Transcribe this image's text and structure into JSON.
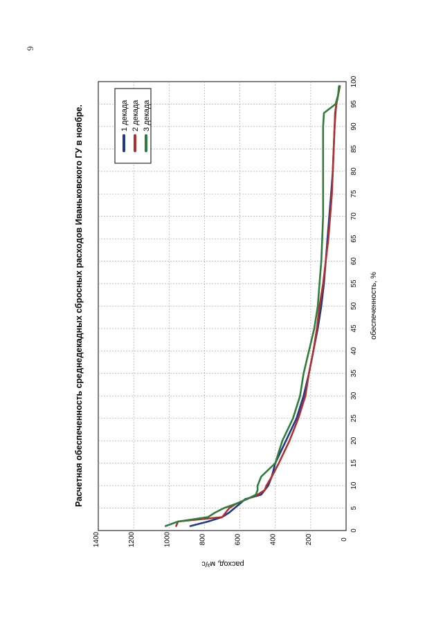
{
  "page": {
    "number": "6"
  },
  "colors": {
    "series1": "#1f3a8a",
    "series2": "#b03030",
    "series3": "#2e7d3a",
    "grid": "#9a9a9a"
  },
  "chart_data": {
    "type": "line",
    "orientation": "rotated-90-clockwise",
    "title": "Расчетная обеспеченность среднедекадных сбросных расходов Иваньковского ГУ в ноябре.",
    "xlabel": "обеспеченность, %",
    "ylabel": "расход, м³/с",
    "xlim": [
      0,
      100
    ],
    "ylim": [
      0,
      1400
    ],
    "x_ticks": [
      "0",
      "5",
      "10",
      "15",
      "20",
      "25",
      "30",
      "35",
      "40",
      "45",
      "50",
      "55",
      "60",
      "65",
      "70",
      "75",
      "80",
      "85",
      "90",
      "95",
      "100"
    ],
    "y_ticks": [
      "0",
      "200",
      "400",
      "600",
      "800",
      "1000",
      "1200",
      "1400"
    ],
    "grid": true,
    "legend_position": "top-right",
    "series": [
      {
        "name": "1 декада",
        "x": [
          1,
          2,
          3,
          4,
          5,
          6,
          7,
          8,
          9,
          10,
          12,
          15,
          20,
          25,
          30,
          35,
          40,
          45,
          50,
          55,
          60,
          65,
          70,
          75,
          80,
          85,
          90,
          93,
          95,
          97,
          99
        ],
        "y": [
          880,
          780,
          700,
          660,
          630,
          600,
          570,
          480,
          460,
          440,
          420,
          400,
          340,
          280,
          240,
          210,
          185,
          160,
          140,
          125,
          115,
          105,
          95,
          85,
          75,
          70,
          65,
          60,
          55,
          45,
          40
        ]
      },
      {
        "name": "2 декада",
        "x": [
          1,
          2,
          3,
          4,
          5,
          6,
          7,
          8,
          9,
          10,
          12,
          15,
          20,
          25,
          30,
          35,
          40,
          45,
          50,
          55,
          60,
          65,
          70,
          75,
          80,
          85,
          90,
          93,
          95,
          97,
          99
        ],
        "y": [
          960,
          950,
          700,
          680,
          660,
          620,
          560,
          500,
          460,
          450,
          420,
          380,
          320,
          270,
          230,
          210,
          185,
          165,
          150,
          130,
          115,
          100,
          90,
          80,
          75,
          70,
          65,
          62,
          55,
          45,
          35
        ]
      },
      {
        "name": "3 декада",
        "x": [
          1,
          2,
          3,
          4,
          5,
          6,
          7,
          8,
          9,
          10,
          12,
          15,
          20,
          25,
          30,
          35,
          40,
          45,
          50,
          55,
          60,
          65,
          70,
          75,
          80,
          85,
          90,
          93,
          95,
          97,
          99
        ],
        "y": [
          1020,
          950,
          780,
          740,
          690,
          620,
          560,
          510,
          500,
          500,
          480,
          400,
          360,
          300,
          260,
          240,
          210,
          180,
          160,
          150,
          140,
          135,
          130,
          130,
          130,
          130,
          130,
          125,
          60,
          45,
          40
        ]
      }
    ]
  }
}
